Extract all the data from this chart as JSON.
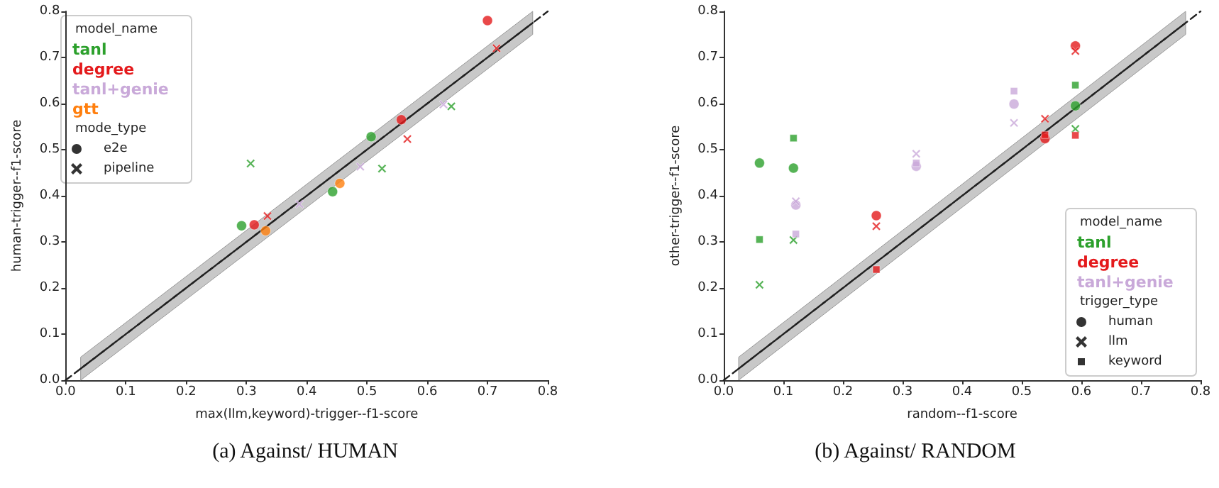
{
  "chart_data": [
    {
      "type": "scatter",
      "title": "(a) Against/ HUMAN",
      "xlabel": "max(llm,keyword)-trigger--f1-score",
      "ylabel": "human-trigger--f1-score",
      "xlim": [
        0,
        0.8
      ],
      "ylim": [
        0,
        0.8
      ],
      "xticks": [
        {
          "value": 0,
          "label": "0.0"
        },
        0.1,
        0.2,
        0.3,
        0.4,
        0.5,
        0.6,
        0.7,
        0.8
      ],
      "yticks": [
        {
          "value": 0,
          "label": "0.0"
        },
        0.1,
        0.2,
        0.3,
        0.4,
        0.5,
        0.6,
        0.7,
        0.8
      ],
      "grid": false,
      "legend": "top left",
      "legend_title": "model_name",
      "annotations": [
        "mode_type",
        "e2e",
        "pipeline"
      ],
      "series": [
        {
          "type": "line",
          "color": "#222222",
          "line_style": "dashed",
          "marker": "none",
          "x": [
            0.025,
            0.775
          ],
          "values": [
            0.025,
            0.775
          ],
          "lower": [
            0,
            0.75
          ],
          "upper": [
            0.05,
            0.8
          ]
        },
        {
          "type": "line",
          "color": "#222222",
          "line_style": "dashed",
          "marker": "none",
          "x": [
            0,
            0.8
          ],
          "values": [
            0,
            0.8
          ]
        },
        {
          "name": "tanl",
          "color": "#2ca02c",
          "marker": [
            "circle",
            "circle",
            "circle",
            "cross",
            "cross",
            "cross"
          ],
          "x": [
            0.292,
            0.443,
            0.507,
            0.307,
            0.525,
            0.64
          ],
          "values": [
            0.335,
            0.409,
            0.528,
            0.47,
            0.459,
            0.594
          ]
        },
        {
          "name": "degree",
          "color": "#e41a1c",
          "marker": [
            "circle",
            "circle",
            "circle",
            "cross",
            "cross",
            "cross"
          ],
          "x": [
            0.313,
            0.557,
            0.7,
            0.335,
            0.567,
            0.715
          ],
          "values": [
            0.337,
            0.565,
            0.78,
            0.356,
            0.523,
            0.72
          ]
        },
        {
          "name": "tanl+genie",
          "color": "#c9a9d9",
          "marker": [
            "cross",
            "cross",
            "cross"
          ],
          "x": [
            0.388,
            0.489,
            0.627
          ],
          "values": [
            0.382,
            0.463,
            0.598
          ]
        },
        {
          "name": "gtt",
          "color": "#ff7f0e",
          "marker": [
            "circle",
            "circle"
          ],
          "x": [
            0.332,
            0.455
          ],
          "values": [
            0.324,
            0.427
          ]
        }
      ]
    },
    {
      "type": "scatter",
      "title": "(b) Against/ RANDOM",
      "xlabel": "random--f1-score",
      "ylabel": "other-trigger--f1-score",
      "xlim": [
        0,
        0.8
      ],
      "ylim": [
        0,
        0.8
      ],
      "xticks": [
        {
          "value": 0,
          "label": "0.0"
        },
        0.1,
        0.2,
        0.3,
        0.4,
        0.5,
        0.6,
        0.7,
        0.8
      ],
      "yticks": [
        {
          "value": 0,
          "label": "0.0"
        },
        0.1,
        0.2,
        0.3,
        0.4,
        0.5,
        0.6,
        0.7,
        0.8
      ],
      "grid": false,
      "legend": "bottom right",
      "legend_title": "model_name",
      "annotations": [
        "trigger_type",
        "human",
        "llm",
        "keyword"
      ],
      "series": [
        {
          "type": "line",
          "color": "#222222",
          "line_style": "dashed",
          "marker": "none",
          "x": [
            0.025,
            0.775
          ],
          "values": [
            0.025,
            0.775
          ],
          "lower": [
            0,
            0.75
          ],
          "upper": [
            0.05,
            0.8
          ]
        },
        {
          "type": "line",
          "color": "#222222",
          "line_style": "dashed",
          "marker": "none",
          "x": [
            0,
            0.8
          ],
          "values": [
            0,
            0.8
          ]
        },
        {
          "name": "tanl",
          "color": "#2ca02c",
          "marker": [
            "circle",
            "circle",
            "circle",
            "cross",
            "cross",
            "cross",
            "square",
            "square",
            "square"
          ],
          "x": [
            0.06,
            0.117,
            0.59,
            0.06,
            0.117,
            0.59,
            0.06,
            0.117,
            0.59
          ],
          "values": [
            0.471,
            0.46,
            0.595,
            0.207,
            0.304,
            0.545,
            0.305,
            0.525,
            0.64
          ]
        },
        {
          "name": "degree",
          "color": "#e41a1c",
          "marker": [
            "circle",
            "circle",
            "circle",
            "cross",
            "cross",
            "cross",
            "square",
            "square",
            "square"
          ],
          "x": [
            0.256,
            0.539,
            0.59,
            0.256,
            0.539,
            0.59,
            0.256,
            0.539,
            0.59
          ],
          "values": [
            0.357,
            0.524,
            0.725,
            0.334,
            0.567,
            0.714,
            0.24,
            0.532,
            0.531
          ]
        },
        {
          "name": "tanl+genie",
          "color": "#c9a9d9",
          "marker": [
            "circle",
            "circle",
            "circle",
            "cross",
            "cross",
            "cross",
            "square",
            "square",
            "square"
          ],
          "x": [
            0.121,
            0.323,
            0.487,
            0.121,
            0.323,
            0.487,
            0.121,
            0.323,
            0.487
          ],
          "values": [
            0.38,
            0.464,
            0.599,
            0.388,
            0.491,
            0.558,
            0.317,
            0.471,
            0.627
          ]
        }
      ]
    }
  ]
}
